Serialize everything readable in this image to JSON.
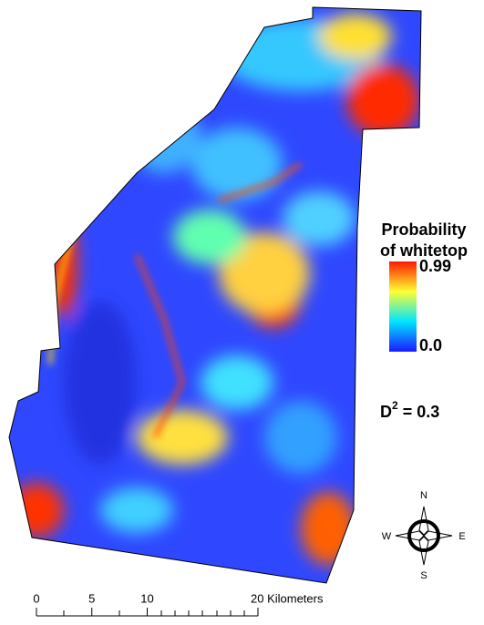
{
  "legend": {
    "title": [
      "Probability",
      "of whitetop"
    ],
    "range": [
      0,
      0.99
    ],
    "ticks": [
      0.99,
      {
        "value": 0,
        "label": "0.0"
      }
    ],
    "colors": [
      "#1a1aff",
      "#00e5ff",
      "#ffff33",
      "#ff1a00"
    ]
  },
  "statistic": {
    "symbol": "D",
    "superscript": "2",
    "text": " = 0.3"
  },
  "compass": {
    "north": "N",
    "south": "S",
    "east": "E",
    "west": "W"
  },
  "scale_bar": {
    "xlim": [
      0,
      20
    ],
    "xticks": [
      0,
      5,
      10,
      {
        "value": 20,
        "label": "20 Kilometers"
      }
    ]
  }
}
